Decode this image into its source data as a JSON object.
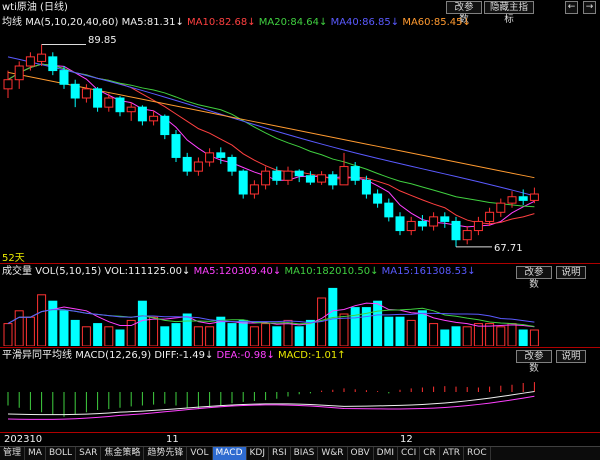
{
  "header": {
    "title": "wti原油 (日线)",
    "buttons": {
      "modify": "改参数",
      "hide": "隐藏主指标",
      "prev": "←",
      "next": "→"
    }
  },
  "ma_legend": {
    "label": "均线",
    "params": "MA(5,10,20,40,60)",
    "ma5": "MA5:81.31↓",
    "ma10": "MA10:82.68↓",
    "ma20": "MA20:84.64↓",
    "ma40": "MA40:86.85↓",
    "ma60": "MA60:85.45↓"
  },
  "price_panel": {
    "high_label": "89.85",
    "low_label": "67.71",
    "days_label": "52天"
  },
  "volume_panel": {
    "label": "成交量",
    "params": "VOL(5,10,15)",
    "vol": "VOL:111125.00↓",
    "ma5": "MA5:120309.40↓",
    "ma10": "MA10:182010.50↓",
    "ma15": "MA15:161308.53↓",
    "modify": "改参数",
    "explain": "说明"
  },
  "macd_panel": {
    "label": "平滑异同平均线",
    "params": "MACD(12,26,9)",
    "diff": "DIFF:-1.49↓",
    "dea": "DEA:-0.98↓",
    "macd": "MACD:-1.01↑",
    "modify": "改参数",
    "explain": "说明"
  },
  "time_axis": {
    "labels": [
      "202310",
      "11",
      "12"
    ]
  },
  "bottom_tabs": [
    "管理",
    "MA",
    "BOLL",
    "SAR",
    "焦金策略",
    "趋势先锋",
    "VOL",
    "MACD",
    "KDJ",
    "RSI",
    "BIAS",
    "W&R",
    "OBV",
    "DMI",
    "CCI",
    "CR",
    "ATR",
    "ROC"
  ],
  "active_tab": "MACD",
  "colors": {
    "up": "#ff3232",
    "down": "#00ffff",
    "ma5": "#ff40ff",
    "ma10": "#ff4040",
    "ma20": "#40d040",
    "ma40": "#5a5aff",
    "ma60": "#ff9a30"
  }
}
